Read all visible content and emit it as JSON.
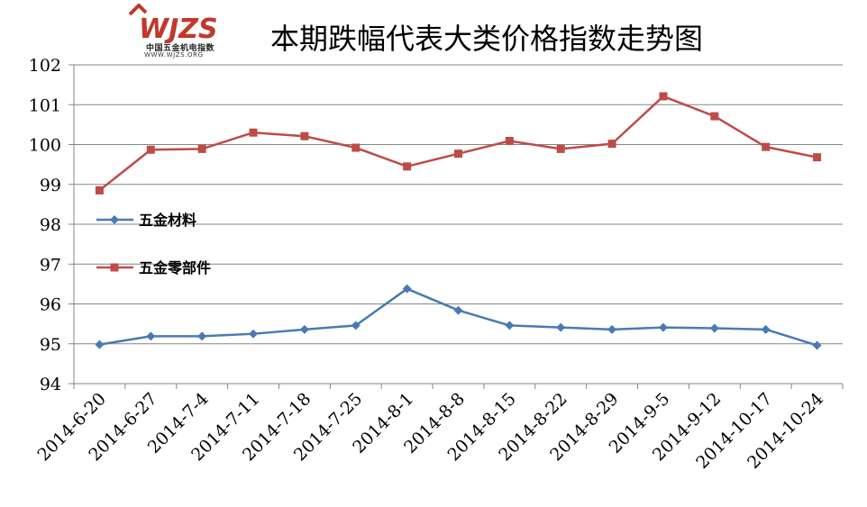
{
  "logo": {
    "brand_text": "WJZS",
    "cn_text": "中国五金机电指数",
    "url_text": "WWW.WJZS.ORG"
  },
  "chart_data": {
    "type": "line",
    "title": "本期跌幅代表大类价格指数走势图",
    "xlabel": "",
    "ylabel": "",
    "categories": [
      "2014-6-20",
      "2014-6-27",
      "2014-7-4",
      "2014-7-11",
      "2014-7-18",
      "2014-7-25",
      "2014-8-1",
      "2014-8-8",
      "2014-8-15",
      "2014-8-22",
      "2014-8-29",
      "2014-9-5",
      "2014-9-12",
      "2014-10-17",
      "2014-10-24"
    ],
    "ylim": [
      94,
      102
    ],
    "yticks": [
      94,
      95,
      96,
      97,
      98,
      99,
      100,
      101,
      102
    ],
    "grid": true,
    "legend": "left",
    "series": [
      {
        "name": "五金材料",
        "color": "#4a7ab5",
        "marker": "diamond",
        "values": [
          94.98,
          95.19,
          95.19,
          95.25,
          95.36,
          95.46,
          96.38,
          95.84,
          95.46,
          95.41,
          95.36,
          95.41,
          95.39,
          95.36,
          94.96
        ]
      },
      {
        "name": "五金零部件",
        "color": "#be4b48",
        "marker": "square",
        "values": [
          98.85,
          99.87,
          99.89,
          100.3,
          100.21,
          99.92,
          99.45,
          99.77,
          100.09,
          99.89,
          100.02,
          101.21,
          100.71,
          99.94,
          99.68
        ]
      }
    ]
  }
}
